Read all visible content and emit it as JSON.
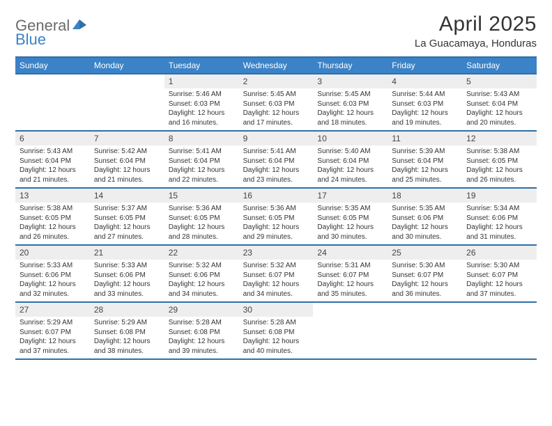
{
  "logo": {
    "textA": "General",
    "textB": "Blue"
  },
  "title": "April 2025",
  "location": "La Guacamaya, Honduras",
  "header_bg": "#3b82c7",
  "header_border": "#2f6fa8",
  "daynum_bg": "#eeeeee",
  "text_color": "#333333",
  "day_names": [
    "Sunday",
    "Monday",
    "Tuesday",
    "Wednesday",
    "Thursday",
    "Friday",
    "Saturday"
  ],
  "weeks": [
    [
      {
        "day": "",
        "lines": []
      },
      {
        "day": "",
        "lines": []
      },
      {
        "day": "1",
        "lines": [
          "Sunrise: 5:46 AM",
          "Sunset: 6:03 PM",
          "Daylight: 12 hours",
          "and 16 minutes."
        ]
      },
      {
        "day": "2",
        "lines": [
          "Sunrise: 5:45 AM",
          "Sunset: 6:03 PM",
          "Daylight: 12 hours",
          "and 17 minutes."
        ]
      },
      {
        "day": "3",
        "lines": [
          "Sunrise: 5:45 AM",
          "Sunset: 6:03 PM",
          "Daylight: 12 hours",
          "and 18 minutes."
        ]
      },
      {
        "day": "4",
        "lines": [
          "Sunrise: 5:44 AM",
          "Sunset: 6:03 PM",
          "Daylight: 12 hours",
          "and 19 minutes."
        ]
      },
      {
        "day": "5",
        "lines": [
          "Sunrise: 5:43 AM",
          "Sunset: 6:04 PM",
          "Daylight: 12 hours",
          "and 20 minutes."
        ]
      }
    ],
    [
      {
        "day": "6",
        "lines": [
          "Sunrise: 5:43 AM",
          "Sunset: 6:04 PM",
          "Daylight: 12 hours",
          "and 21 minutes."
        ]
      },
      {
        "day": "7",
        "lines": [
          "Sunrise: 5:42 AM",
          "Sunset: 6:04 PM",
          "Daylight: 12 hours",
          "and 21 minutes."
        ]
      },
      {
        "day": "8",
        "lines": [
          "Sunrise: 5:41 AM",
          "Sunset: 6:04 PM",
          "Daylight: 12 hours",
          "and 22 minutes."
        ]
      },
      {
        "day": "9",
        "lines": [
          "Sunrise: 5:41 AM",
          "Sunset: 6:04 PM",
          "Daylight: 12 hours",
          "and 23 minutes."
        ]
      },
      {
        "day": "10",
        "lines": [
          "Sunrise: 5:40 AM",
          "Sunset: 6:04 PM",
          "Daylight: 12 hours",
          "and 24 minutes."
        ]
      },
      {
        "day": "11",
        "lines": [
          "Sunrise: 5:39 AM",
          "Sunset: 6:04 PM",
          "Daylight: 12 hours",
          "and 25 minutes."
        ]
      },
      {
        "day": "12",
        "lines": [
          "Sunrise: 5:38 AM",
          "Sunset: 6:05 PM",
          "Daylight: 12 hours",
          "and 26 minutes."
        ]
      }
    ],
    [
      {
        "day": "13",
        "lines": [
          "Sunrise: 5:38 AM",
          "Sunset: 6:05 PM",
          "Daylight: 12 hours",
          "and 26 minutes."
        ]
      },
      {
        "day": "14",
        "lines": [
          "Sunrise: 5:37 AM",
          "Sunset: 6:05 PM",
          "Daylight: 12 hours",
          "and 27 minutes."
        ]
      },
      {
        "day": "15",
        "lines": [
          "Sunrise: 5:36 AM",
          "Sunset: 6:05 PM",
          "Daylight: 12 hours",
          "and 28 minutes."
        ]
      },
      {
        "day": "16",
        "lines": [
          "Sunrise: 5:36 AM",
          "Sunset: 6:05 PM",
          "Daylight: 12 hours",
          "and 29 minutes."
        ]
      },
      {
        "day": "17",
        "lines": [
          "Sunrise: 5:35 AM",
          "Sunset: 6:05 PM",
          "Daylight: 12 hours",
          "and 30 minutes."
        ]
      },
      {
        "day": "18",
        "lines": [
          "Sunrise: 5:35 AM",
          "Sunset: 6:06 PM",
          "Daylight: 12 hours",
          "and 30 minutes."
        ]
      },
      {
        "day": "19",
        "lines": [
          "Sunrise: 5:34 AM",
          "Sunset: 6:06 PM",
          "Daylight: 12 hours",
          "and 31 minutes."
        ]
      }
    ],
    [
      {
        "day": "20",
        "lines": [
          "Sunrise: 5:33 AM",
          "Sunset: 6:06 PM",
          "Daylight: 12 hours",
          "and 32 minutes."
        ]
      },
      {
        "day": "21",
        "lines": [
          "Sunrise: 5:33 AM",
          "Sunset: 6:06 PM",
          "Daylight: 12 hours",
          "and 33 minutes."
        ]
      },
      {
        "day": "22",
        "lines": [
          "Sunrise: 5:32 AM",
          "Sunset: 6:06 PM",
          "Daylight: 12 hours",
          "and 34 minutes."
        ]
      },
      {
        "day": "23",
        "lines": [
          "Sunrise: 5:32 AM",
          "Sunset: 6:07 PM",
          "Daylight: 12 hours",
          "and 34 minutes."
        ]
      },
      {
        "day": "24",
        "lines": [
          "Sunrise: 5:31 AM",
          "Sunset: 6:07 PM",
          "Daylight: 12 hours",
          "and 35 minutes."
        ]
      },
      {
        "day": "25",
        "lines": [
          "Sunrise: 5:30 AM",
          "Sunset: 6:07 PM",
          "Daylight: 12 hours",
          "and 36 minutes."
        ]
      },
      {
        "day": "26",
        "lines": [
          "Sunrise: 5:30 AM",
          "Sunset: 6:07 PM",
          "Daylight: 12 hours",
          "and 37 minutes."
        ]
      }
    ],
    [
      {
        "day": "27",
        "lines": [
          "Sunrise: 5:29 AM",
          "Sunset: 6:07 PM",
          "Daylight: 12 hours",
          "and 37 minutes."
        ]
      },
      {
        "day": "28",
        "lines": [
          "Sunrise: 5:29 AM",
          "Sunset: 6:08 PM",
          "Daylight: 12 hours",
          "and 38 minutes."
        ]
      },
      {
        "day": "29",
        "lines": [
          "Sunrise: 5:28 AM",
          "Sunset: 6:08 PM",
          "Daylight: 12 hours",
          "and 39 minutes."
        ]
      },
      {
        "day": "30",
        "lines": [
          "Sunrise: 5:28 AM",
          "Sunset: 6:08 PM",
          "Daylight: 12 hours",
          "and 40 minutes."
        ]
      },
      {
        "day": "",
        "lines": []
      },
      {
        "day": "",
        "lines": []
      },
      {
        "day": "",
        "lines": []
      }
    ]
  ]
}
